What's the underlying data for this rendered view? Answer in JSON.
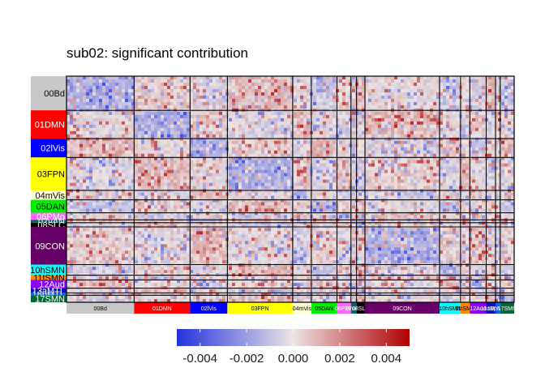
{
  "chart_data": {
    "type": "heatmap",
    "title": "sub02: significant contribution",
    "xlabel": "",
    "ylabel": "",
    "networks": [
      {
        "name": "00Bd",
        "color": "#c8c8c8",
        "text_color": "#000000",
        "size": 0.145
      },
      {
        "name": "01DMN",
        "color": "#ff0000",
        "text_color": "#ffffff",
        "size": 0.12
      },
      {
        "name": "02lVis",
        "color": "#0000ff",
        "text_color": "#ffffff",
        "size": 0.08
      },
      {
        "name": "03FPN",
        "color": "#ffff00",
        "text_color": "#000000",
        "size": 0.14
      },
      {
        "name": "04mVis",
        "color": "#ffffd8",
        "text_color": "#000000",
        "size": 0.04
      },
      {
        "name": "05DAN",
        "color": "#00ee00",
        "text_color": "#000000",
        "size": 0.055
      },
      {
        "name": "06PMo",
        "color": "#ff66ff",
        "text_color": "#ffffff",
        "size": 0.03
      },
      {
        "name": "07vAN",
        "color": "#006666",
        "text_color": "#ffffff",
        "size": 0.012
      },
      {
        "name": "08SLC",
        "color": "#000000",
        "text_color": "#ffffff",
        "size": 0.018
      },
      {
        "name": "09CON",
        "color": "#660066",
        "text_color": "#ffffff",
        "size": 0.16
      },
      {
        "name": "10hSMN",
        "color": "#00ffff",
        "text_color": "#000000",
        "size": 0.045
      },
      {
        "name": "11tSMN",
        "color": "#ff8800",
        "text_color": "#000000",
        "size": 0.02
      },
      {
        "name": "12Aud",
        "color": "#8800ff",
        "text_color": "#ffffff",
        "size": 0.035
      },
      {
        "name": "13aMTL",
        "color": "#1111aa",
        "text_color": "#ffffff",
        "size": 0.02
      },
      {
        "name": "16pMTL",
        "color": "#0066ff",
        "text_color": "#ffffff",
        "size": 0.01
      },
      {
        "name": "17SMN",
        "color": "#006633",
        "text_color": "#ffffff",
        "size": 0.03
      }
    ],
    "colorscale": {
      "min": -0.005,
      "max": 0.005,
      "low_color": "#2233dd",
      "mid_color": "#ece4e4",
      "high_color": "#b00000",
      "ticks": [
        -0.004,
        -0.002,
        0.0,
        0.002,
        0.004
      ],
      "tick_labels": [
        "-0.004",
        "-0.002",
        "0.000",
        "0.002",
        "0.004"
      ]
    }
  }
}
